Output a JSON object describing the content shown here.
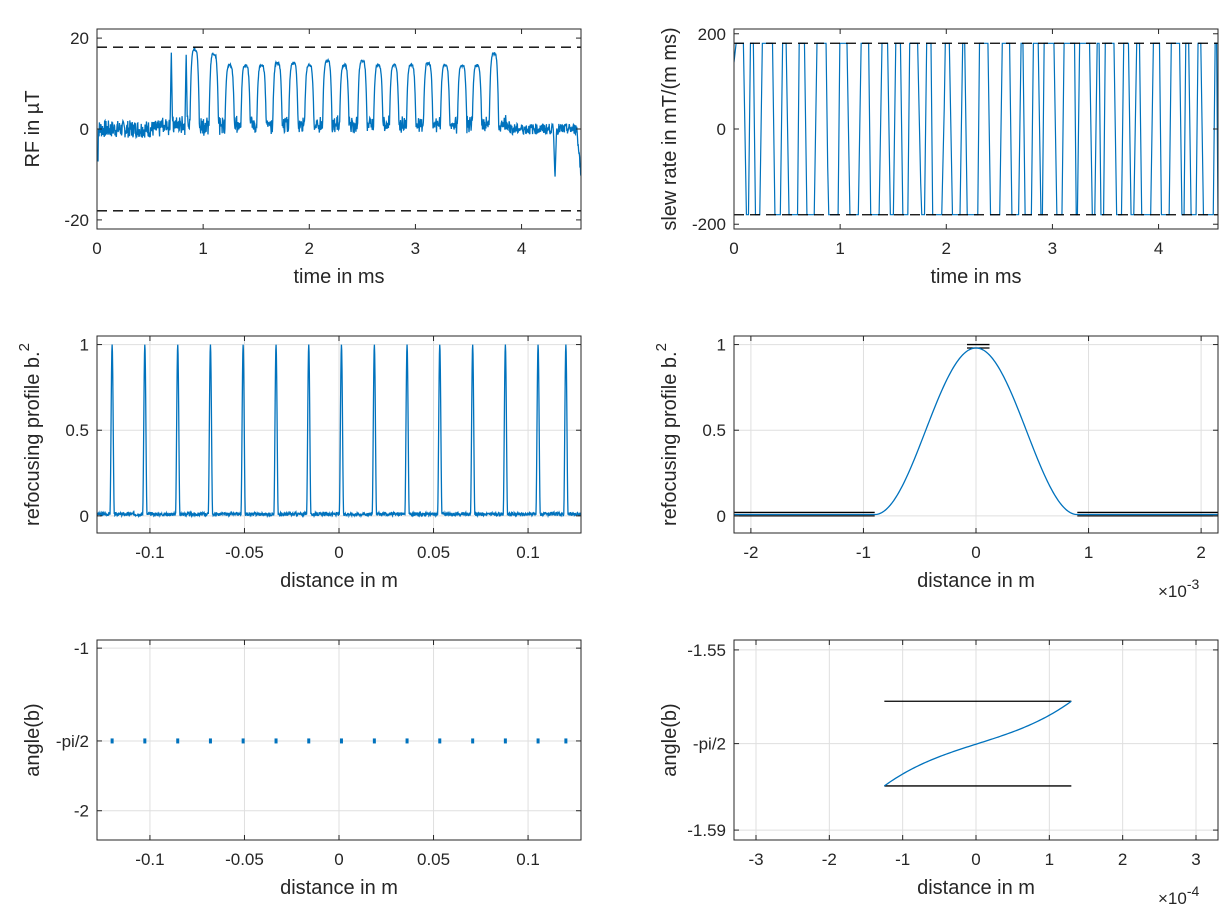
{
  "chart_data": [
    {
      "id": "rf",
      "type": "line",
      "xlabel": "time in ms",
      "ylabel": "RF in µT",
      "xlim": [
        0,
        4.56
      ],
      "ylim": [
        -22,
        22
      ],
      "xticks": [
        0,
        1,
        2,
        3,
        4
      ],
      "xtick_labels": [
        "0",
        "1",
        "2",
        "3",
        "4"
      ],
      "yticks": [
        -20,
        0,
        20
      ],
      "ytick_labels": [
        "-20",
        "0",
        "20"
      ],
      "grid": false,
      "limit_lines": [
        18,
        -18
      ],
      "series": [
        {
          "name": "RF",
          "color": "#0072BD",
          "pulse_centers": [
            0.92,
            1.1,
            1.25,
            1.4,
            1.55,
            1.7,
            1.85,
            2.0,
            2.17,
            2.33,
            2.5,
            2.65,
            2.8,
            2.96,
            3.12,
            3.28,
            3.44,
            3.58,
            3.74
          ],
          "pulse_peaks": [
            17.5,
            16.5,
            14,
            14,
            14,
            14.5,
            14.5,
            14,
            15,
            14,
            15,
            14,
            14,
            14,
            14.5,
            14,
            14,
            14,
            16.5
          ],
          "spike_peaks": [
            [
              0.7,
              17.2
            ],
            [
              0.84,
              16.8
            ]
          ],
          "noise_amplitude": 1.2,
          "end_values": [
            -7,
            -11,
            -10
          ]
        }
      ]
    },
    {
      "id": "slew",
      "type": "line",
      "xlabel": "time in ms",
      "ylabel": "slew rate in mT/(m ms)",
      "xlim": [
        0,
        4.56
      ],
      "ylim": [
        -210,
        210
      ],
      "xticks": [
        0,
        1,
        2,
        3,
        4
      ],
      "xtick_labels": [
        "0",
        "1",
        "2",
        "3",
        "4"
      ],
      "yticks": [
        -200,
        0,
        200
      ],
      "ytick_labels": [
        "-200",
        "0",
        "200"
      ],
      "grid": false,
      "limit_lines": [
        180,
        -180
      ],
      "series": [
        {
          "name": "slew rate",
          "color": "#0072BD",
          "max": 180,
          "min": -180,
          "mode": "bang-bang switching between limits"
        }
      ]
    },
    {
      "id": "profile_wide",
      "type": "line",
      "xlabel": "distance in m",
      "ylabel": "refocusing profile b.",
      "ylabel_sup": "2",
      "xlim": [
        -0.128,
        0.128
      ],
      "ylim": [
        -0.1,
        1.05
      ],
      "xticks": [
        -0.1,
        -0.05,
        0,
        0.05,
        0.1
      ],
      "xtick_labels": [
        "-0.1",
        "-0.05",
        "0",
        "0.05",
        "0.1"
      ],
      "yticks": [
        0,
        0.5,
        1
      ],
      "ytick_labels": [
        "0",
        "0.5",
        "1"
      ],
      "grid": true,
      "series": [
        {
          "name": "|b|^2",
          "color": "#0072BD",
          "peak_positions": [
            -0.12,
            -0.1027,
            -0.0853,
            -0.068,
            -0.0507,
            -0.0333,
            -0.016,
            0.0013,
            0.0187,
            0.036,
            0.0533,
            0.0707,
            0.088,
            0.1053,
            0.12
          ],
          "peak_value": 1,
          "baseline": 0.01
        }
      ]
    },
    {
      "id": "profile_zoom",
      "type": "line",
      "xlabel": "distance in m",
      "ylabel": "refocusing profile b.",
      "ylabel_sup": "2",
      "x_exponent": "×10",
      "x_exponent_power": "-3",
      "xlim": [
        -2.15,
        2.15
      ],
      "ylim": [
        -0.1,
        1.05
      ],
      "xticks": [
        -2,
        -1,
        0,
        1,
        2
      ],
      "xtick_labels": [
        "-2",
        "-1",
        "0",
        "1",
        "2"
      ],
      "yticks": [
        0,
        0.5,
        1
      ],
      "ytick_labels": [
        "0",
        "0.5",
        "1"
      ],
      "grid": true,
      "series": [
        {
          "name": "|b|^2",
          "color": "#0072BD",
          "peak": 0.98,
          "transition_start": 0.9
        }
      ],
      "bound_lines": [
        {
          "x": [
            -2.15,
            -0.9
          ],
          "y": [
            0.02,
            0.02
          ]
        },
        {
          "x": [
            -2.15,
            -0.9
          ],
          "y": [
            0,
            0
          ]
        },
        {
          "x": [
            0.9,
            2.15
          ],
          "y": [
            0.02,
            0.02
          ]
        },
        {
          "x": [
            0.9,
            2.15
          ],
          "y": [
            0,
            0
          ]
        },
        {
          "x": [
            -0.08,
            0.12
          ],
          "y": [
            1.0,
            1.0
          ]
        },
        {
          "x": [
            -0.08,
            0.12
          ],
          "y": [
            0.98,
            0.98
          ]
        }
      ]
    },
    {
      "id": "angle_wide",
      "type": "scatter",
      "xlabel": "distance in m",
      "ylabel": "angle(b)",
      "xlim": [
        -0.128,
        0.128
      ],
      "ylim": [
        -2.18,
        -0.95
      ],
      "xticks": [
        -0.1,
        -0.05,
        0,
        0.05,
        0.1
      ],
      "xtick_labels": [
        "-0.1",
        "-0.05",
        "0",
        "0.05",
        "0.1"
      ],
      "yticks": [
        -2,
        -1.5708,
        -1
      ],
      "ytick_labels": [
        "-2",
        "-pi/2",
        "-1"
      ],
      "grid": true,
      "series": [
        {
          "name": "angle",
          "color": "#0072BD",
          "x": [
            -0.12,
            -0.1027,
            -0.0853,
            -0.068,
            -0.0507,
            -0.0333,
            -0.016,
            0.0013,
            0.0187,
            0.036,
            0.0533,
            0.0707,
            0.088,
            0.1053,
            0.12
          ],
          "y": -1.5708
        }
      ]
    },
    {
      "id": "angle_zoom",
      "type": "line",
      "xlabel": "distance in m",
      "ylabel": "angle(b)",
      "x_exponent": "×10",
      "x_exponent_power": "-4",
      "xlim": [
        -3.3,
        3.3
      ],
      "ylim": [
        -1.5922,
        -1.5478
      ],
      "xticks": [
        -3,
        -2,
        -1,
        0,
        1,
        2,
        3
      ],
      "xtick_labels": [
        "-3",
        "-2",
        "-1",
        "0",
        "1",
        "2",
        "3"
      ],
      "yticks": [
        -1.59,
        -1.5708,
        -1.55
      ],
      "ytick_labels": [
        "-1.59",
        "-pi/2",
        "-1.55"
      ],
      "grid": true,
      "series": [
        {
          "name": "angle",
          "color": "#0072BD",
          "x": [
            -1.25,
            1.3
          ],
          "y": [
            -1.5802,
            -1.5614
          ]
        }
      ],
      "bound_lines": [
        {
          "x": [
            -1.25,
            1.3
          ],
          "y": [
            -1.5614,
            -1.5614
          ]
        },
        {
          "x": [
            -1.25,
            1.3
          ],
          "y": [
            -1.5802,
            -1.5802
          ]
        }
      ]
    }
  ]
}
